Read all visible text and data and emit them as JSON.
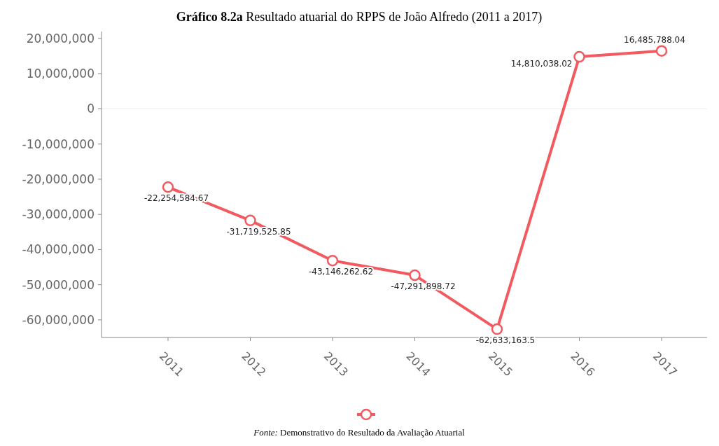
{
  "chart_data": {
    "type": "line",
    "title": "Gráfico 8.2a Resultado atuarial do RPPS de João Alfredo (2011 a 2017)",
    "annotations": [
      "Fonte: Demonstrativo do Resultado da Avaliação Atuarial"
    ],
    "categories": [
      "2011",
      "2012",
      "2013",
      "2014",
      "2015",
      "2016",
      "2017"
    ],
    "series": [
      {
        "color": "#f25a5f",
        "values": [
          -22254584.67,
          -31719525.85,
          -43146262.62,
          -47291898.72,
          -62633163.5,
          14810038.02,
          16485788.04
        ],
        "value_labels": [
          "-22,254,584.67",
          "-31,719,525.85",
          "-43,146,262.62",
          "-47,291,898.72",
          "-62,633,163.5",
          "14,810,038.02",
          "16,485,788.04"
        ]
      }
    ],
    "ylim": [
      -65000000,
      22000000
    ],
    "yticks": [
      {
        "value": -60000000,
        "label": "-60,000,000"
      },
      {
        "value": -50000000,
        "label": "-50,000,000"
      },
      {
        "value": -40000000,
        "label": "-40,000,000"
      },
      {
        "value": -30000000,
        "label": "-30,000,000"
      },
      {
        "value": -20000000,
        "label": "-20,000,000"
      },
      {
        "value": -10000000,
        "label": "-10,000,000"
      },
      0,
      {
        "value": 10000000,
        "label": "10,000,000"
      },
      {
        "value": 20000000,
        "label": "20,000,000"
      }
    ],
    "ref_lines": [
      {
        "axis": "y",
        "value": 0,
        "color": "#eeeeee"
      }
    ],
    "marker": "circle",
    "line_style": "solid",
    "grid": false
  }
}
